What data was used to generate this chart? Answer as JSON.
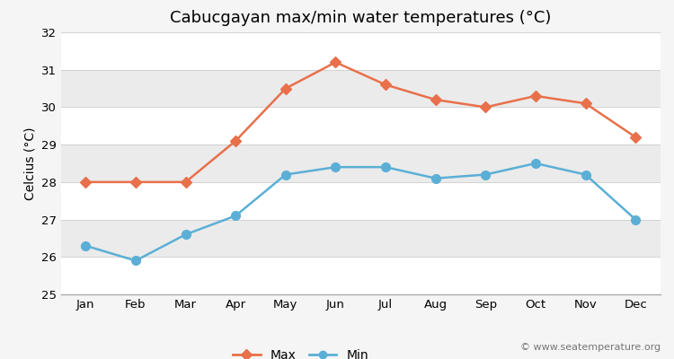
{
  "title": "Cabucgayan max/min water temperatures (°C)",
  "ylabel": "Celcius (°C)",
  "months": [
    "Jan",
    "Feb",
    "Mar",
    "Apr",
    "May",
    "Jun",
    "Jul",
    "Aug",
    "Sep",
    "Oct",
    "Nov",
    "Dec"
  ],
  "max_values": [
    28.0,
    28.0,
    28.0,
    29.1,
    30.5,
    31.2,
    30.6,
    30.2,
    30.0,
    30.3,
    30.1,
    29.2
  ],
  "min_values": [
    26.3,
    25.9,
    26.6,
    27.1,
    28.2,
    28.4,
    28.4,
    28.1,
    28.2,
    28.5,
    28.2,
    27.0
  ],
  "max_color": "#E8704A",
  "min_color": "#5BAFD6",
  "ylim": [
    25,
    32
  ],
  "yticks": [
    25,
    26,
    27,
    28,
    29,
    30,
    31,
    32
  ],
  "band_colors": [
    "#ffffff",
    "#ebebeb"
  ],
  "outer_bg": "#f5f5f5",
  "legend_labels": [
    "Max",
    "Min"
  ],
  "watermark": "© www.seatemperature.org",
  "title_fontsize": 13,
  "label_fontsize": 10,
  "tick_fontsize": 9.5,
  "watermark_fontsize": 8
}
